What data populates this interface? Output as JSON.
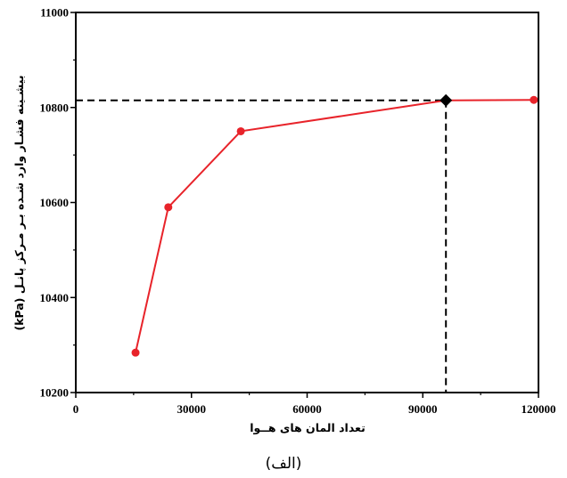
{
  "chart_data": {
    "type": "line",
    "xlabel": "تعداد المان های هــوا",
    "ylabel": "بیشـینه فشـار وارد شـده بـر مـرکز پانـل (kPa)",
    "caption": "(الف)",
    "xlim": [
      0,
      120000
    ],
    "ylim": [
      10200,
      11000
    ],
    "xticks": [
      0,
      30000,
      60000,
      90000,
      120000
    ],
    "yticks": [
      10200,
      10400,
      10600,
      10800,
      11000
    ],
    "xtick_labels": [
      "0",
      "30000",
      "60000",
      "90000",
      "120000"
    ],
    "ytick_labels": [
      "10200",
      "10400",
      "10600",
      "10800",
      "11000"
    ],
    "grid": false,
    "series": [
      {
        "color": "#e8232a",
        "marker": "circle",
        "x": [
          15500,
          24000,
          42800,
          96000,
          118800
        ],
        "y": [
          10284,
          10590,
          10750,
          10815,
          10816
        ]
      }
    ],
    "highlight": {
      "x": 96000,
      "y": 10815,
      "marker": "diamond",
      "color": "#000000",
      "reference_lines": "dashed"
    }
  }
}
